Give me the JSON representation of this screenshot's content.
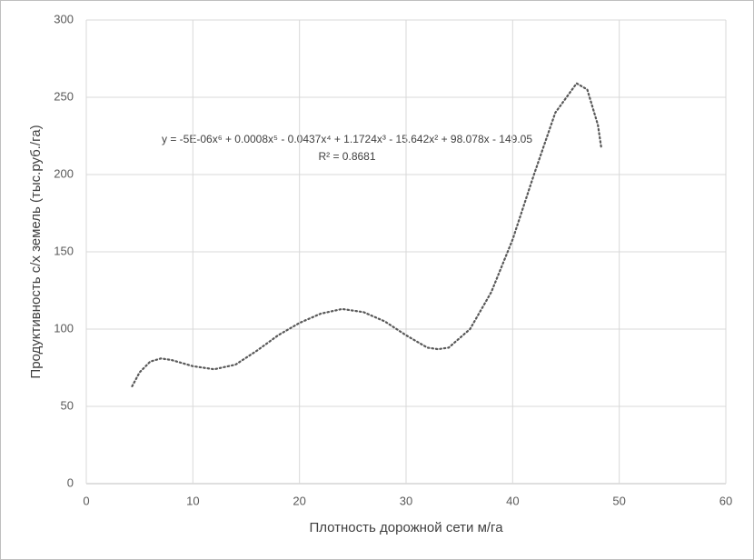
{
  "chart_data": {
    "type": "line",
    "x_label": "Плотность дорожной сети м/га",
    "y_label": "Продуктивность с/х земель (тыс.руб./га)",
    "annotations": [
      "y = -5E-06x⁶ + 0.0008x⁵ - 0.0437x⁴ + 1.1724x³ - 15.642x² + 98.078x - 149.05",
      "R² = 0.8681"
    ],
    "x": [
      4.3,
      5,
      6,
      7,
      8,
      10,
      12,
      14,
      16,
      18,
      20,
      22,
      24,
      26,
      28,
      30,
      32,
      33,
      34,
      36,
      38,
      40,
      42,
      44,
      46,
      47,
      48,
      48.3
    ],
    "values": [
      63,
      72,
      79,
      81,
      80,
      76,
      74,
      77,
      86,
      96,
      104,
      110,
      113,
      111,
      105,
      96,
      88,
      87,
      88,
      100,
      124,
      158,
      200,
      240,
      259,
      255,
      232,
      218
    ],
    "color": "#595959",
    "line_style": "dotted",
    "xlim": [
      0,
      60
    ],
    "xticks": [
      0,
      10,
      20,
      30,
      40,
      50,
      60
    ],
    "ylim": [
      0,
      300
    ],
    "yticks": [
      0,
      50,
      100,
      150,
      200,
      250,
      300
    ],
    "grid": true
  }
}
